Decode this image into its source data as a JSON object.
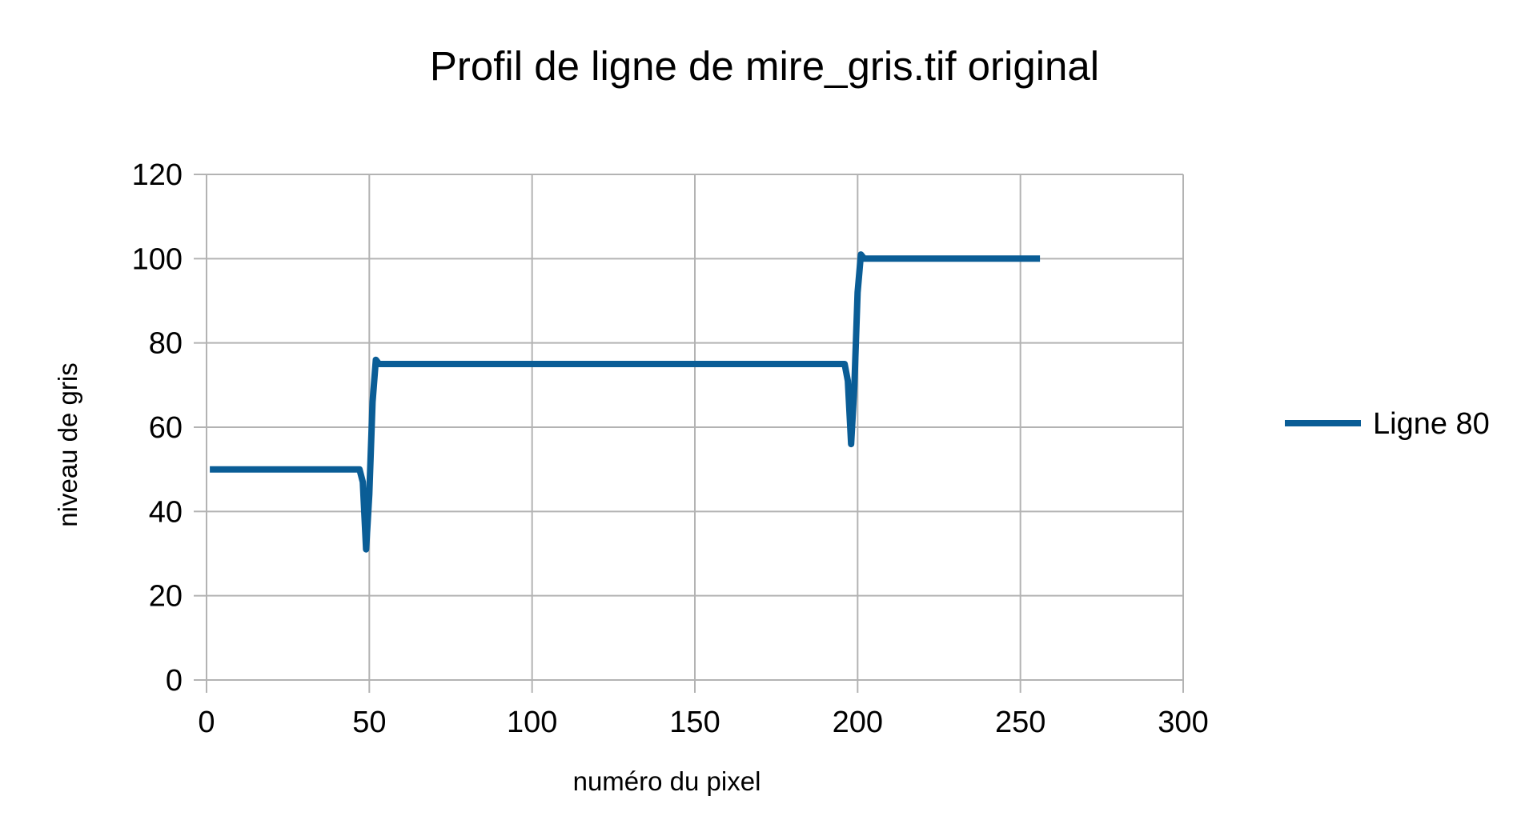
{
  "chart_data": {
    "type": "line",
    "title": "Profil de ligne de mire_gris.tif original",
    "xlabel": "numéro du pixel",
    "ylabel": "niveau de gris",
    "xlim": [
      0,
      300
    ],
    "ylim": [
      0,
      120
    ],
    "x_ticks": [
      0,
      50,
      100,
      150,
      200,
      250,
      300
    ],
    "y_ticks": [
      0,
      20,
      40,
      60,
      80,
      100,
      120
    ],
    "x_tick_labels": [
      "0",
      "50",
      "100",
      "150",
      "200",
      "250",
      "300"
    ],
    "y_tick_labels": [
      "0",
      "20",
      "40",
      "60",
      "80",
      "100",
      "120"
    ],
    "grid": true,
    "legend_position": "right",
    "series": [
      {
        "name": "Ligne 80",
        "color": "#0a5d96",
        "x": [
          1,
          10,
          20,
          30,
          40,
          47,
          48,
          49,
          50,
          51,
          52,
          53,
          60,
          80,
          100,
          120,
          140,
          160,
          180,
          196,
          197,
          198,
          199,
          200,
          201,
          202,
          210,
          220,
          230,
          240,
          256
        ],
        "y": [
          50,
          50,
          50,
          50,
          50,
          50,
          47,
          31,
          44,
          66,
          76,
          75,
          75,
          75,
          75,
          75,
          75,
          75,
          75,
          75,
          71,
          56,
          70,
          92,
          101,
          100,
          100,
          100,
          100,
          100,
          100
        ]
      }
    ]
  }
}
